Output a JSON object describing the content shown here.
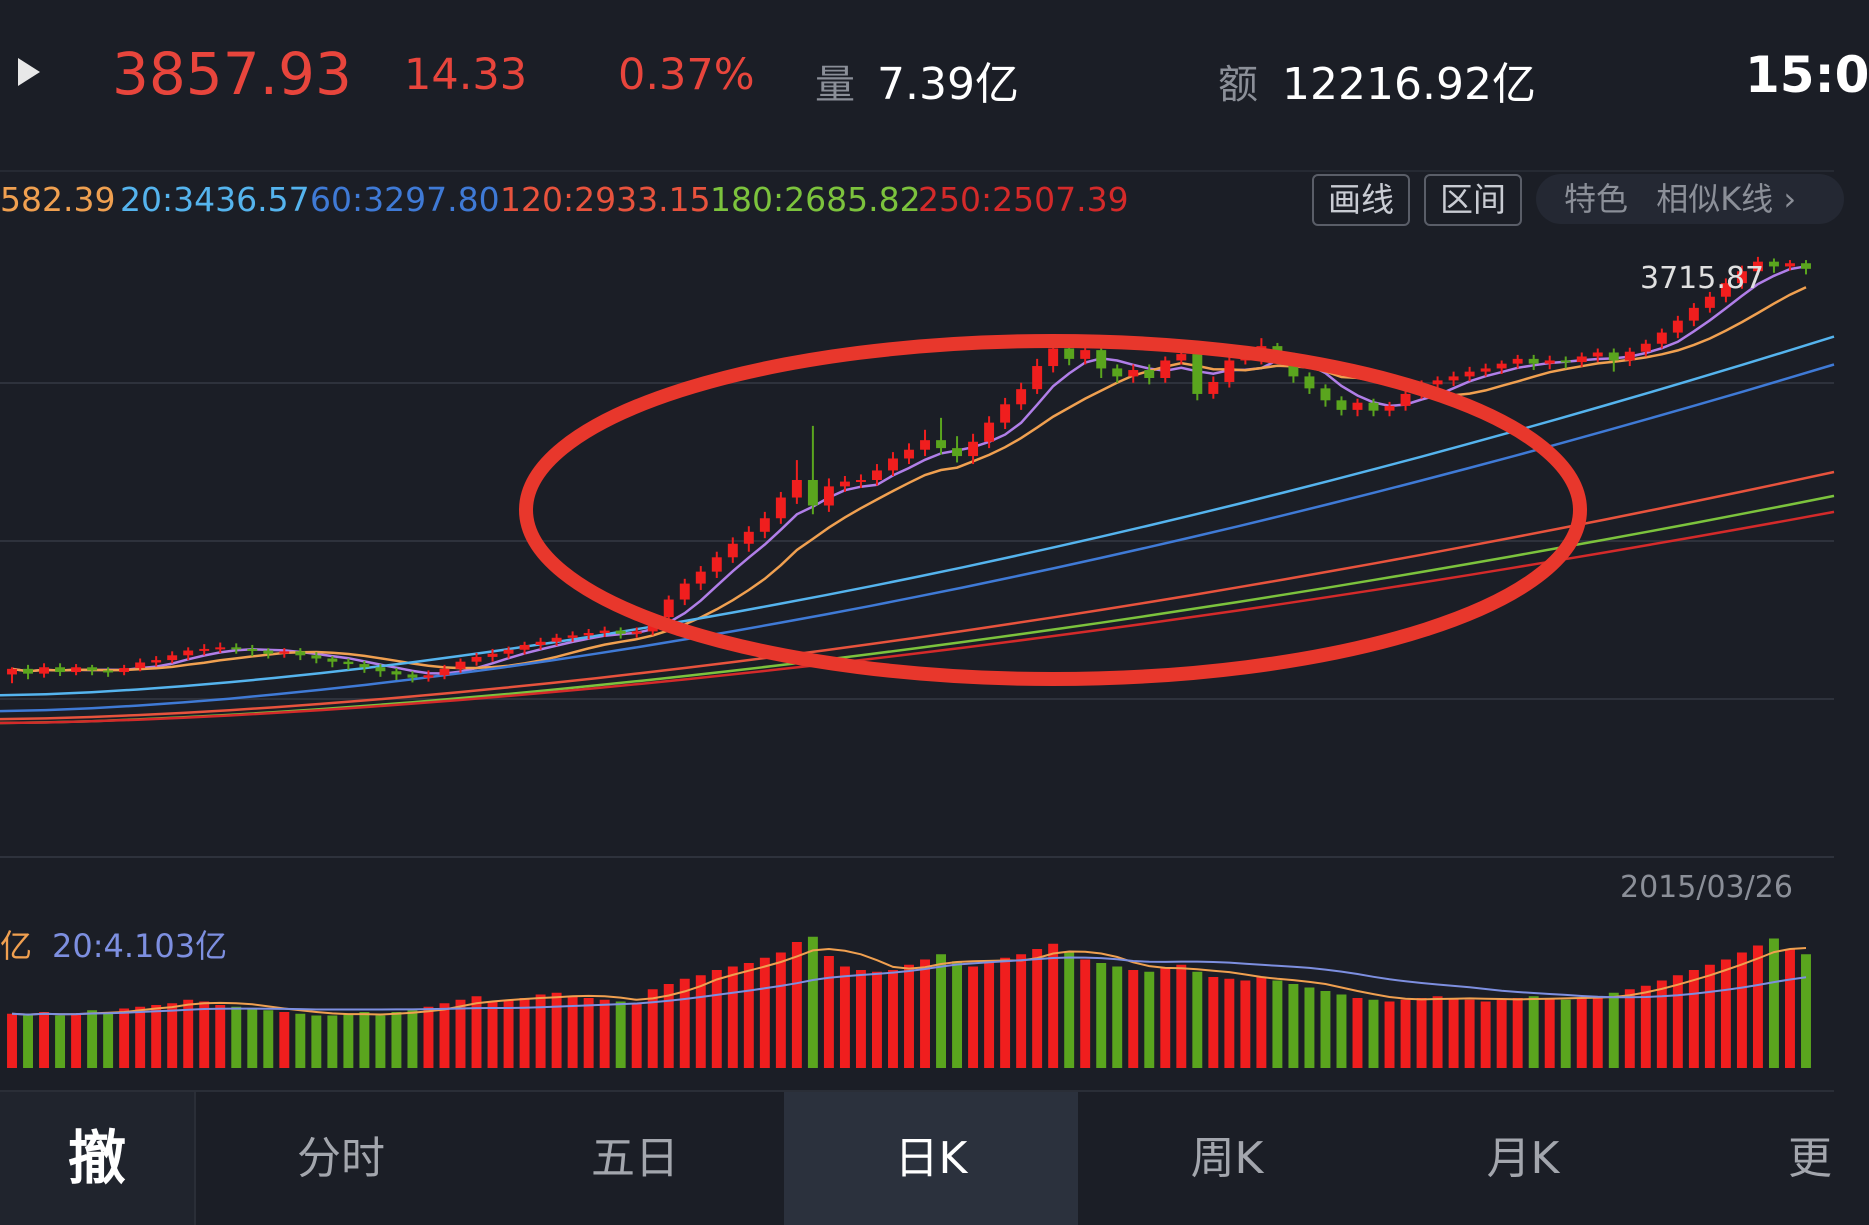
{
  "header": {
    "price": "3857.93",
    "change": "14.33",
    "change_pct": "0.37%",
    "volume_label": "量",
    "volume_value": "7.39亿",
    "amount_label": "额",
    "amount_value": "12216.92亿",
    "time": "15:0"
  },
  "ma_bar": {
    "ma_partial": "582.39",
    "ma20": "20:3436.57",
    "ma60": "60:3297.80",
    "ma120": "120:2933.15",
    "ma180": "180:2685.82",
    "ma250": "250:2507.39"
  },
  "toolbar": {
    "draw_label": "画线",
    "range_label": "区间",
    "feature_label": "特色",
    "similar_label": "相似K线 ›"
  },
  "main_chart": {
    "high_label": "3715.87",
    "date_label": "2015/03/26"
  },
  "volume_bar": {
    "partial_label": "亿",
    "vol_ma20": "20:4.103亿"
  },
  "tabs": [
    "撤",
    "分时",
    "五日",
    "日K",
    "周K",
    "月K",
    "更"
  ],
  "active_tab": "日K",
  "colors": {
    "up": "#f01e1e",
    "down": "#5aa51e",
    "ma5": "#b07ee8",
    "ma10": "#f0a050",
    "ma20": "#55b4ee",
    "ma60": "#3f7ad6",
    "ma120": "#e8533d",
    "ma180": "#7cc33d",
    "ma250": "#d42a2a",
    "annotation": "#e8372c"
  },
  "chart_data": {
    "type": "candlestick",
    "candles": [
      [
        3196,
        3203,
        3185,
        3205
      ],
      [
        3203,
        3197,
        3190,
        3208
      ],
      [
        3197,
        3205,
        3192,
        3210
      ],
      [
        3205,
        3199,
        3194,
        3210
      ],
      [
        3199,
        3205,
        3195,
        3209
      ],
      [
        3205,
        3201,
        3195,
        3208
      ],
      [
        3201,
        3199,
        3193,
        3205
      ],
      [
        3199,
        3204,
        3195,
        3208
      ],
      [
        3204,
        3211,
        3200,
        3216
      ],
      [
        3211,
        3214,
        3206,
        3219
      ],
      [
        3214,
        3220,
        3210,
        3225
      ],
      [
        3220,
        3226,
        3214,
        3230
      ],
      [
        3226,
        3228,
        3220,
        3234
      ],
      [
        3228,
        3230,
        3223,
        3236
      ],
      [
        3230,
        3228,
        3222,
        3235
      ],
      [
        3228,
        3226,
        3219,
        3233
      ],
      [
        3226,
        3222,
        3216,
        3229
      ],
      [
        3222,
        3225,
        3217,
        3229
      ],
      [
        3225,
        3220,
        3214,
        3229
      ],
      [
        3220,
        3216,
        3210,
        3224
      ],
      [
        3216,
        3212,
        3205,
        3219
      ],
      [
        3212,
        3209,
        3202,
        3216
      ],
      [
        3209,
        3205,
        3198,
        3213
      ],
      [
        3205,
        3200,
        3193,
        3209
      ],
      [
        3200,
        3196,
        3189,
        3204
      ],
      [
        3196,
        3192,
        3186,
        3200
      ],
      [
        3192,
        3195,
        3187,
        3201
      ],
      [
        3195,
        3203,
        3190,
        3208
      ],
      [
        3203,
        3212,
        3198,
        3216
      ],
      [
        3212,
        3218,
        3207,
        3223
      ],
      [
        3218,
        3222,
        3212,
        3228
      ],
      [
        3222,
        3227,
        3216,
        3231
      ],
      [
        3227,
        3233,
        3221,
        3237
      ],
      [
        3233,
        3237,
        3227,
        3242
      ],
      [
        3237,
        3242,
        3232,
        3247
      ],
      [
        3242,
        3245,
        3237,
        3250
      ],
      [
        3245,
        3248,
        3240,
        3253
      ],
      [
        3248,
        3251,
        3243,
        3256
      ],
      [
        3251,
        3247,
        3241,
        3255
      ],
      [
        3247,
        3250,
        3242,
        3255
      ],
      [
        3250,
        3268,
        3245,
        3272
      ],
      [
        3268,
        3290,
        3262,
        3295
      ],
      [
        3290,
        3310,
        3283,
        3316
      ],
      [
        3310,
        3325,
        3302,
        3332
      ],
      [
        3325,
        3343,
        3317,
        3350
      ],
      [
        3343,
        3360,
        3336,
        3368
      ],
      [
        3360,
        3375,
        3350,
        3382
      ],
      [
        3375,
        3392,
        3367,
        3400
      ],
      [
        3392,
        3418,
        3385,
        3425
      ],
      [
        3418,
        3440,
        3410,
        3465
      ],
      [
        3440,
        3408,
        3397,
        3508
      ],
      [
        3408,
        3432,
        3400,
        3442
      ],
      [
        3432,
        3438,
        3425,
        3445
      ],
      [
        3438,
        3440,
        3430,
        3447
      ],
      [
        3440,
        3452,
        3433,
        3460
      ],
      [
        3452,
        3467,
        3445,
        3475
      ],
      [
        3467,
        3478,
        3460,
        3486
      ],
      [
        3478,
        3490,
        3470,
        3503
      ],
      [
        3490,
        3480,
        3472,
        3518
      ],
      [
        3480,
        3470,
        3462,
        3495
      ],
      [
        3470,
        3488,
        3460,
        3498
      ],
      [
        3488,
        3512,
        3480,
        3520
      ],
      [
        3512,
        3535,
        3504,
        3543
      ],
      [
        3535,
        3554,
        3528,
        3562
      ],
      [
        3554,
        3583,
        3548,
        3592
      ],
      [
        3583,
        3605,
        3575,
        3612
      ],
      [
        3605,
        3592,
        3584,
        3612
      ],
      [
        3592,
        3603,
        3585,
        3610
      ],
      [
        3603,
        3580,
        3568,
        3615
      ],
      [
        3580,
        3570,
        3562,
        3585
      ],
      [
        3570,
        3578,
        3562,
        3585
      ],
      [
        3578,
        3568,
        3560,
        3585
      ],
      [
        3568,
        3590,
        3562,
        3595
      ],
      [
        3590,
        3598,
        3585,
        3606
      ],
      [
        3598,
        3548,
        3540,
        3605
      ],
      [
        3548,
        3563,
        3542,
        3570
      ],
      [
        3563,
        3590,
        3556,
        3596
      ],
      [
        3590,
        3593,
        3585,
        3600
      ],
      [
        3593,
        3608,
        3585,
        3618
      ],
      [
        3608,
        3597,
        3590,
        3612
      ],
      [
        3597,
        3570,
        3562,
        3600
      ],
      [
        3570,
        3555,
        3548,
        3575
      ],
      [
        3555,
        3540,
        3532,
        3560
      ],
      [
        3540,
        3528,
        3521,
        3545
      ],
      [
        3528,
        3537,
        3520,
        3542
      ],
      [
        3537,
        3527,
        3520,
        3542
      ],
      [
        3527,
        3533,
        3520,
        3538
      ],
      [
        3533,
        3548,
        3527,
        3553
      ],
      [
        3548,
        3560,
        3542,
        3565
      ],
      [
        3560,
        3565,
        3553,
        3570
      ],
      [
        3565,
        3570,
        3558,
        3576
      ],
      [
        3570,
        3576,
        3564,
        3582
      ],
      [
        3576,
        3580,
        3570,
        3586
      ],
      [
        3580,
        3586,
        3573,
        3590
      ],
      [
        3586,
        3592,
        3580,
        3597
      ],
      [
        3592,
        3586,
        3578,
        3597
      ],
      [
        3586,
        3590,
        3579,
        3596
      ],
      [
        3590,
        3588,
        3580,
        3595
      ],
      [
        3588,
        3595,
        3582,
        3600
      ],
      [
        3595,
        3600,
        3588,
        3605
      ],
      [
        3600,
        3590,
        3576,
        3605
      ],
      [
        3590,
        3601,
        3583,
        3606
      ],
      [
        3601,
        3611,
        3595,
        3616
      ],
      [
        3611,
        3625,
        3605,
        3630
      ],
      [
        3625,
        3640,
        3618,
        3646
      ],
      [
        3640,
        3656,
        3633,
        3662
      ],
      [
        3656,
        3670,
        3650,
        3676
      ],
      [
        3670,
        3687,
        3663,
        3693
      ],
      [
        3687,
        3702,
        3680,
        3709
      ],
      [
        3702,
        3714,
        3697,
        3720
      ],
      [
        3714,
        3708,
        3700,
        3718
      ],
      [
        3708,
        3712,
        3703,
        3716
      ],
      [
        3712,
        3705,
        3698,
        3716
      ]
    ],
    "ma_lines": [
      {
        "name": "5",
        "start": [
          3200,
          3200
        ],
        "end": [
          3705,
          3709
        ]
      },
      {
        "name": "20",
        "start": [
          3170,
          3170
        ],
        "end": [
          3620,
          3620
        ]
      },
      {
        "name": "60",
        "start": [
          3150,
          3150
        ],
        "end": [
          3585,
          3585
        ]
      },
      {
        "name": "120",
        "start": [
          3140,
          3140
        ],
        "end": [
          3450,
          3450
        ]
      },
      {
        "name": "180",
        "start": [
          3135,
          3135
        ],
        "end": [
          3420,
          3420
        ]
      },
      {
        "name": "250",
        "start": [
          3135,
          3135
        ],
        "end": [
          3400,
          3400
        ]
      }
    ],
    "volume": [
      3.1,
      3.0,
      3.2,
      3.0,
      3.1,
      3.3,
      3.2,
      3.4,
      3.5,
      3.6,
      3.7,
      3.9,
      3.8,
      3.6,
      3.5,
      3.4,
      3.3,
      3.2,
      3.1,
      3.0,
      3.0,
      3.1,
      3.2,
      3.0,
      3.2,
      3.3,
      3.5,
      3.7,
      3.9,
      4.1,
      3.8,
      3.9,
      4.0,
      4.2,
      4.3,
      4.1,
      4.0,
      3.9,
      3.8,
      3.7,
      4.5,
      4.8,
      5.1,
      5.3,
      5.6,
      5.8,
      6.0,
      6.3,
      6.6,
      7.2,
      7.5,
      6.4,
      5.8,
      5.6,
      5.5,
      5.6,
      5.9,
      6.2,
      6.5,
      6.1,
      5.8,
      6.0,
      6.3,
      6.5,
      6.8,
      7.1,
      6.6,
      6.2,
      6.0,
      5.8,
      5.6,
      5.5,
      5.7,
      5.9,
      5.5,
      5.2,
      5.1,
      5.0,
      5.2,
      5.0,
      4.8,
      4.6,
      4.4,
      4.2,
      4.0,
      3.9,
      3.8,
      3.9,
      4.0,
      4.1,
      4.0,
      3.9,
      3.8,
      3.9,
      4.0,
      4.1,
      4.0,
      3.9,
      4.0,
      4.1,
      4.3,
      4.5,
      4.7,
      5.0,
      5.3,
      5.6,
      5.9,
      6.2,
      6.6,
      7.0,
      7.4,
      6.8,
      6.5
    ]
  }
}
